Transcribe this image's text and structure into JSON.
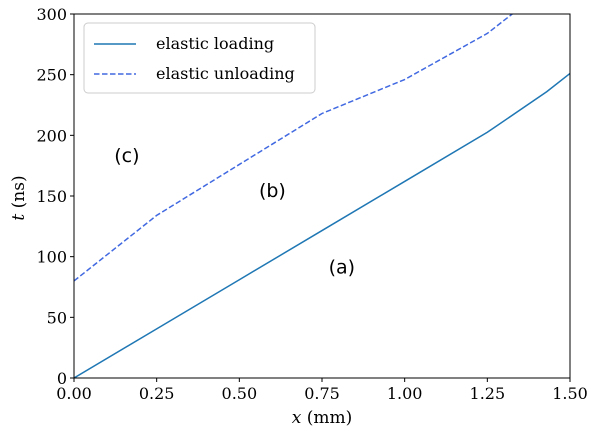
{
  "chart_data": {
    "type": "line",
    "xlabel_var": "x",
    "xlabel_unit": " (mm)",
    "ylabel_var": "t",
    "ylabel_unit": " (ns)",
    "xlim": [
      0,
      1.5
    ],
    "ylim": [
      0,
      300
    ],
    "xticks": [
      "0.00",
      "0.25",
      "0.50",
      "0.75",
      "1.00",
      "1.25",
      "1.50"
    ],
    "yticks": [
      "0",
      "50",
      "100",
      "150",
      "200",
      "250",
      "300"
    ],
    "grid": false,
    "legend_position": "top-left",
    "series": [
      {
        "name": "elastic loading",
        "style": "solid",
        "color": "#1f77b4",
        "x": [
          0,
          0.25,
          0.5,
          0.75,
          1.0,
          1.25,
          1.43,
          1.5
        ],
        "y": [
          0,
          40.5,
          81,
          121.5,
          162,
          202.5,
          236,
          251
        ]
      },
      {
        "name": "elastic unloading",
        "style": "dashed",
        "color": "#4169e1",
        "x": [
          0,
          0.25,
          0.5,
          0.75,
          1.0,
          1.25,
          1.33
        ],
        "y": [
          80,
          134,
          176,
          218,
          246,
          284,
          301
        ]
      }
    ],
    "annotations": [
      {
        "text": "(a)",
        "x": 0.81,
        "y": 86
      },
      {
        "text": "(b)",
        "x": 0.6,
        "y": 149
      },
      {
        "text": "(c)",
        "x": 0.16,
        "y": 178
      }
    ]
  }
}
